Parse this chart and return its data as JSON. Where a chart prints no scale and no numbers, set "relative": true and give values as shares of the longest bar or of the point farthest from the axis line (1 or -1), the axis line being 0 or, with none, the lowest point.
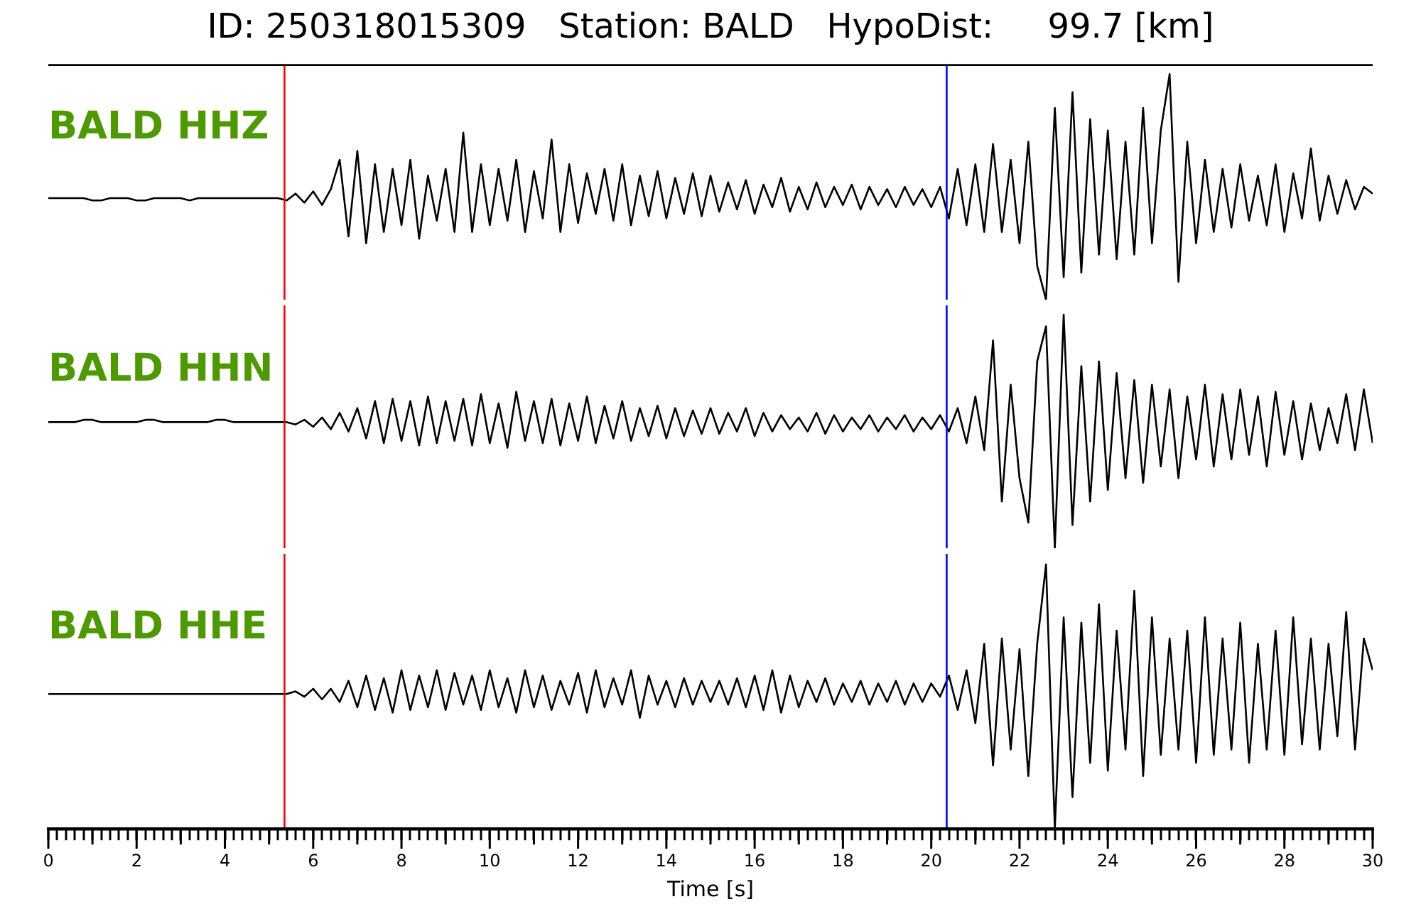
{
  "chart_data": [
    {
      "type": "line",
      "title": "ID: 250318015309   Station: BALD   HypoDist:     99.7 [km]",
      "relative": true,
      "xlim": [
        0,
        30
      ],
      "tick_labels": false,
      "marker": "none",
      "line_style": "solid",
      "grid": false,
      "legend": false,
      "x": [
        0,
        0.2,
        0.4,
        0.6,
        0.8,
        1,
        1.2,
        1.4,
        1.6,
        1.8,
        2,
        2.2,
        2.4,
        2.6,
        2.8,
        3,
        3.2,
        3.4,
        3.6,
        3.8,
        4,
        4.2,
        4.4,
        4.6,
        4.8,
        5,
        5.2,
        5.4,
        5.6,
        5.8,
        6,
        6.2,
        6.4,
        6.6,
        6.8,
        7,
        7.2,
        7.4,
        7.6,
        7.8,
        8,
        8.2,
        8.4,
        8.6,
        8.8,
        9,
        9.2,
        9.4,
        9.6,
        9.8,
        10,
        10.2,
        10.4,
        10.6,
        10.8,
        11,
        11.2,
        11.4,
        11.6,
        11.8,
        12,
        12.2,
        12.4,
        12.6,
        12.8,
        13,
        13.2,
        13.4,
        13.6,
        13.8,
        14,
        14.2,
        14.4,
        14.6,
        14.8,
        15,
        15.2,
        15.4,
        15.6,
        15.8,
        16,
        16.2,
        16.4,
        16.6,
        16.8,
        17,
        17.2,
        17.4,
        17.6,
        17.8,
        18,
        18.2,
        18.4,
        18.6,
        18.8,
        19,
        19.2,
        19.4,
        19.6,
        19.8,
        20,
        20.2,
        20.4,
        20.6,
        20.8,
        21,
        21.2,
        21.4,
        21.6,
        21.8,
        22,
        22.2,
        22.4,
        22.6,
        22.8,
        23,
        23.2,
        23.4,
        23.6,
        23.8,
        24,
        24.2,
        24.4,
        24.6,
        24.8,
        25,
        25.2,
        25.4,
        25.6,
        25.8,
        26,
        26.2,
        26.4,
        26.6,
        26.8,
        27,
        27.2,
        27.4,
        27.6,
        27.8,
        28,
        28.2,
        28.4,
        28.6,
        28.8,
        29,
        29.2,
        29.4,
        29.6,
        29.8,
        30
      ],
      "series": [
        {
          "name": "BALD HHZ",
          "color": "#000000",
          "values": [
            0.45,
            0.45,
            0.45,
            0.45,
            0.45,
            0.44,
            0.44,
            0.45,
            0.45,
            0.45,
            0.44,
            0.44,
            0.45,
            0.45,
            0.45,
            0.45,
            0.44,
            0.45,
            0.45,
            0.45,
            0.45,
            0.45,
            0.45,
            0.45,
            0.45,
            0.45,
            0.45,
            0.44,
            0.47,
            0.43,
            0.48,
            0.42,
            0.49,
            0.62,
            0.28,
            0.66,
            0.25,
            0.6,
            0.3,
            0.58,
            0.33,
            0.62,
            0.27,
            0.55,
            0.35,
            0.58,
            0.3,
            0.74,
            0.3,
            0.6,
            0.33,
            0.58,
            0.35,
            0.62,
            0.3,
            0.57,
            0.36,
            0.71,
            0.3,
            0.6,
            0.34,
            0.56,
            0.38,
            0.58,
            0.35,
            0.6,
            0.33,
            0.55,
            0.37,
            0.57,
            0.36,
            0.54,
            0.38,
            0.56,
            0.37,
            0.55,
            0.39,
            0.52,
            0.4,
            0.53,
            0.38,
            0.51,
            0.41,
            0.54,
            0.39,
            0.5,
            0.4,
            0.52,
            0.41,
            0.5,
            0.42,
            0.51,
            0.4,
            0.5,
            0.42,
            0.49,
            0.41,
            0.5,
            0.42,
            0.49,
            0.41,
            0.5,
            0.36,
            0.58,
            0.33,
            0.6,
            0.3,
            0.69,
            0.3,
            0.62,
            0.25,
            0.7,
            0.15,
            0.0,
            0.85,
            0.1,
            0.92,
            0.12,
            0.8,
            0.2,
            0.75,
            0.18,
            0.7,
            0.2,
            0.85,
            0.25,
            0.75,
            1.0,
            0.08,
            0.7,
            0.25,
            0.62,
            0.3,
            0.58,
            0.32,
            0.6,
            0.35,
            0.55,
            0.33,
            0.6,
            0.3,
            0.56,
            0.36,
            0.67,
            0.35,
            0.55,
            0.38,
            0.53,
            0.4,
            0.5,
            0.47
          ]
        }
      ],
      "ref_lines": [
        {
          "axis": "x",
          "value": 5.35,
          "color": "#ff0000"
        },
        {
          "axis": "x",
          "value": 20.35,
          "color": "#0000ff"
        }
      ]
    },
    {
      "type": "line",
      "relative": true,
      "xlim": [
        0,
        30
      ],
      "tick_labels": false,
      "marker": "none",
      "line_style": "solid",
      "grid": false,
      "legend": false,
      "x": [
        0,
        0.2,
        0.4,
        0.6,
        0.8,
        1,
        1.2,
        1.4,
        1.6,
        1.8,
        2,
        2.2,
        2.4,
        2.6,
        2.8,
        3,
        3.2,
        3.4,
        3.6,
        3.8,
        4,
        4.2,
        4.4,
        4.6,
        4.8,
        5,
        5.2,
        5.4,
        5.6,
        5.8,
        6,
        6.2,
        6.4,
        6.6,
        6.8,
        7,
        7.2,
        7.4,
        7.6,
        7.8,
        8,
        8.2,
        8.4,
        8.6,
        8.8,
        9,
        9.2,
        9.4,
        9.6,
        9.8,
        10,
        10.2,
        10.4,
        10.6,
        10.8,
        11,
        11.2,
        11.4,
        11.6,
        11.8,
        12,
        12.2,
        12.4,
        12.6,
        12.8,
        13,
        13.2,
        13.4,
        13.6,
        13.8,
        14,
        14.2,
        14.4,
        14.6,
        14.8,
        15,
        15.2,
        15.4,
        15.6,
        15.8,
        16,
        16.2,
        16.4,
        16.6,
        16.8,
        17,
        17.2,
        17.4,
        17.6,
        17.8,
        18,
        18.2,
        18.4,
        18.6,
        18.8,
        19,
        19.2,
        19.4,
        19.6,
        19.8,
        20,
        20.2,
        20.4,
        20.6,
        20.8,
        21,
        21.2,
        21.4,
        21.6,
        21.8,
        22,
        22.2,
        22.4,
        22.6,
        22.8,
        23,
        23.2,
        23.4,
        23.6,
        23.8,
        24,
        24.2,
        24.4,
        24.6,
        24.8,
        25,
        25.2,
        25.4,
        25.6,
        25.8,
        26,
        26.2,
        26.4,
        26.6,
        26.8,
        27,
        27.2,
        27.4,
        27.6,
        27.8,
        28,
        28.2,
        28.4,
        28.6,
        28.8,
        29,
        29.2,
        29.4,
        29.6,
        29.8,
        30
      ],
      "series": [
        {
          "name": "BALD HHN",
          "color": "#000000",
          "values": [
            0.54,
            0.54,
            0.54,
            0.54,
            0.55,
            0.55,
            0.54,
            0.54,
            0.54,
            0.54,
            0.54,
            0.55,
            0.55,
            0.54,
            0.54,
            0.54,
            0.54,
            0.54,
            0.54,
            0.55,
            0.55,
            0.54,
            0.54,
            0.54,
            0.54,
            0.54,
            0.54,
            0.54,
            0.53,
            0.55,
            0.52,
            0.56,
            0.51,
            0.58,
            0.5,
            0.6,
            0.47,
            0.63,
            0.45,
            0.64,
            0.46,
            0.63,
            0.44,
            0.65,
            0.45,
            0.63,
            0.46,
            0.64,
            0.44,
            0.66,
            0.45,
            0.62,
            0.43,
            0.67,
            0.46,
            0.63,
            0.45,
            0.64,
            0.44,
            0.62,
            0.46,
            0.65,
            0.45,
            0.61,
            0.47,
            0.63,
            0.46,
            0.6,
            0.48,
            0.61,
            0.47,
            0.6,
            0.48,
            0.59,
            0.49,
            0.6,
            0.49,
            0.58,
            0.5,
            0.6,
            0.48,
            0.58,
            0.5,
            0.57,
            0.51,
            0.56,
            0.5,
            0.58,
            0.49,
            0.57,
            0.5,
            0.56,
            0.51,
            0.57,
            0.5,
            0.56,
            0.51,
            0.57,
            0.5,
            0.56,
            0.51,
            0.57,
            0.5,
            0.6,
            0.45,
            0.65,
            0.42,
            0.89,
            0.2,
            0.7,
            0.3,
            0.11,
            0.8,
            0.95,
            0.0,
            1.0,
            0.1,
            0.78,
            0.2,
            0.8,
            0.25,
            0.75,
            0.3,
            0.72,
            0.28,
            0.7,
            0.35,
            0.68,
            0.3,
            0.65,
            0.38,
            0.7,
            0.35,
            0.66,
            0.38,
            0.68,
            0.4,
            0.65,
            0.35,
            0.67,
            0.4,
            0.63,
            0.38,
            0.62,
            0.42,
            0.6,
            0.45,
            0.66,
            0.42,
            0.68,
            0.45
          ]
        }
      ],
      "ref_lines": [
        {
          "axis": "x",
          "value": 5.35,
          "color": "#ff0000"
        },
        {
          "axis": "x",
          "value": 20.35,
          "color": "#0000ff"
        }
      ]
    },
    {
      "type": "line",
      "relative": true,
      "xlabel": "Time [s]",
      "xlim": [
        0,
        30
      ],
      "tick_labels": "x",
      "marker": "none",
      "line_style": "solid",
      "grid": false,
      "legend": false,
      "xticks": [
        0,
        {
          "value": 0.2,
          "label": null
        },
        {
          "value": 0.4,
          "label": null
        },
        {
          "value": 0.6,
          "label": null
        },
        {
          "value": 0.8,
          "label": null
        },
        {
          "value": 1,
          "label": null
        },
        {
          "value": 1.2,
          "label": null
        },
        {
          "value": 1.4,
          "label": null
        },
        {
          "value": 1.6,
          "label": null
        },
        {
          "value": 1.8,
          "label": null
        },
        2,
        {
          "value": 2.2,
          "label": null
        },
        {
          "value": 2.4,
          "label": null
        },
        {
          "value": 2.6,
          "label": null
        },
        {
          "value": 2.8,
          "label": null
        },
        {
          "value": 3,
          "label": null
        },
        {
          "value": 3.2,
          "label": null
        },
        {
          "value": 3.4,
          "label": null
        },
        {
          "value": 3.6,
          "label": null
        },
        {
          "value": 3.8,
          "label": null
        },
        4,
        {
          "value": 4.2,
          "label": null
        },
        {
          "value": 4.4,
          "label": null
        },
        {
          "value": 4.6,
          "label": null
        },
        {
          "value": 4.8,
          "label": null
        },
        {
          "value": 5,
          "label": null
        },
        {
          "value": 5.2,
          "label": null
        },
        {
          "value": 5.4,
          "label": null
        },
        {
          "value": 5.6,
          "label": null
        },
        {
          "value": 5.8,
          "label": null
        },
        6,
        {
          "value": 6.2,
          "label": null
        },
        {
          "value": 6.4,
          "label": null
        },
        {
          "value": 6.6,
          "label": null
        },
        {
          "value": 6.8,
          "label": null
        },
        {
          "value": 7,
          "label": null
        },
        {
          "value": 7.2,
          "label": null
        },
        {
          "value": 7.4,
          "label": null
        },
        {
          "value": 7.6,
          "label": null
        },
        {
          "value": 7.8,
          "label": null
        },
        8,
        {
          "value": 8.2,
          "label": null
        },
        {
          "value": 8.4,
          "label": null
        },
        {
          "value": 8.6,
          "label": null
        },
        {
          "value": 8.8,
          "label": null
        },
        {
          "value": 9,
          "label": null
        },
        {
          "value": 9.2,
          "label": null
        },
        {
          "value": 9.4,
          "label": null
        },
        {
          "value": 9.6,
          "label": null
        },
        {
          "value": 9.8,
          "label": null
        },
        10,
        {
          "value": 10.2,
          "label": null
        },
        {
          "value": 10.4,
          "label": null
        },
        {
          "value": 10.6,
          "label": null
        },
        {
          "value": 10.8,
          "label": null
        },
        {
          "value": 11,
          "label": null
        },
        {
          "value": 11.2,
          "label": null
        },
        {
          "value": 11.4,
          "label": null
        },
        {
          "value": 11.6,
          "label": null
        },
        {
          "value": 11.8,
          "label": null
        },
        12,
        {
          "value": 12.2,
          "label": null
        },
        {
          "value": 12.4,
          "label": null
        },
        {
          "value": 12.6,
          "label": null
        },
        {
          "value": 12.8,
          "label": null
        },
        {
          "value": 13,
          "label": null
        },
        {
          "value": 13.2,
          "label": null
        },
        {
          "value": 13.4,
          "label": null
        },
        {
          "value": 13.6,
          "label": null
        },
        {
          "value": 13.8,
          "label": null
        },
        14,
        {
          "value": 14.2,
          "label": null
        },
        {
          "value": 14.4,
          "label": null
        },
        {
          "value": 14.6,
          "label": null
        },
        {
          "value": 14.8,
          "label": null
        },
        {
          "value": 15,
          "label": null
        },
        {
          "value": 15.2,
          "label": null
        },
        {
          "value": 15.4,
          "label": null
        },
        {
          "value": 15.6,
          "label": null
        },
        {
          "value": 15.8,
          "label": null
        },
        16,
        {
          "value": 16.2,
          "label": null
        },
        {
          "value": 16.4,
          "label": null
        },
        {
          "value": 16.6,
          "label": null
        },
        {
          "value": 16.8,
          "label": null
        },
        {
          "value": 17,
          "label": null
        },
        {
          "value": 17.2,
          "label": null
        },
        {
          "value": 17.4,
          "label": null
        },
        {
          "value": 17.6,
          "label": null
        },
        {
          "value": 17.8,
          "label": null
        },
        18,
        {
          "value": 18.2,
          "label": null
        },
        {
          "value": 18.4,
          "label": null
        },
        {
          "value": 18.6,
          "label": null
        },
        {
          "value": 18.8,
          "label": null
        },
        {
          "value": 19,
          "label": null
        },
        {
          "value": 19.2,
          "label": null
        },
        {
          "value": 19.4,
          "label": null
        },
        {
          "value": 19.6,
          "label": null
        },
        {
          "value": 19.8,
          "label": null
        },
        20,
        {
          "value": 20.2,
          "label": null
        },
        {
          "value": 20.4,
          "label": null
        },
        {
          "value": 20.6,
          "label": null
        },
        {
          "value": 20.8,
          "label": null
        },
        {
          "value": 21,
          "label": null
        },
        {
          "value": 21.2,
          "label": null
        },
        {
          "value": 21.4,
          "label": null
        },
        {
          "value": 21.6,
          "label": null
        },
        {
          "value": 21.8,
          "label": null
        },
        22,
        {
          "value": 22.2,
          "label": null
        },
        {
          "value": 22.4,
          "label": null
        },
        {
          "value": 22.6,
          "label": null
        },
        {
          "value": 22.8,
          "label": null
        },
        {
          "value": 23,
          "label": null
        },
        {
          "value": 23.2,
          "label": null
        },
        {
          "value": 23.4,
          "label": null
        },
        {
          "value": 23.6,
          "label": null
        },
        {
          "value": 23.8,
          "label": null
        },
        24,
        {
          "value": 24.2,
          "label": null
        },
        {
          "value": 24.4,
          "label": null
        },
        {
          "value": 24.6,
          "label": null
        },
        {
          "value": 24.8,
          "label": null
        },
        {
          "value": 25,
          "label": null
        },
        {
          "value": 25.2,
          "label": null
        },
        {
          "value": 25.4,
          "label": null
        },
        {
          "value": 25.6,
          "label": null
        },
        {
          "value": 25.8,
          "label": null
        },
        26,
        {
          "value": 26.2,
          "label": null
        },
        {
          "value": 26.4,
          "label": null
        },
        {
          "value": 26.6,
          "label": null
        },
        {
          "value": 26.8,
          "label": null
        },
        {
          "value": 27,
          "label": null
        },
        {
          "value": 27.2,
          "label": null
        },
        {
          "value": 27.4,
          "label": null
        },
        {
          "value": 27.6,
          "label": null
        },
        {
          "value": 27.8,
          "label": null
        },
        28,
        {
          "value": 28.2,
          "label": null
        },
        {
          "value": 28.4,
          "label": null
        },
        {
          "value": 28.6,
          "label": null
        },
        {
          "value": 28.8,
          "label": null
        },
        {
          "value": 29,
          "label": null
        },
        {
          "value": 29.2,
          "label": null
        },
        {
          "value": 29.4,
          "label": null
        },
        {
          "value": 29.6,
          "label": null
        },
        {
          "value": 29.8,
          "label": null
        },
        30
      ],
      "x": [
        0,
        0.2,
        0.4,
        0.6,
        0.8,
        1,
        1.2,
        1.4,
        1.6,
        1.8,
        2,
        2.2,
        2.4,
        2.6,
        2.8,
        3,
        3.2,
        3.4,
        3.6,
        3.8,
        4,
        4.2,
        4.4,
        4.6,
        4.8,
        5,
        5.2,
        5.4,
        5.6,
        5.8,
        6,
        6.2,
        6.4,
        6.6,
        6.8,
        7,
        7.2,
        7.4,
        7.6,
        7.8,
        8,
        8.2,
        8.4,
        8.6,
        8.8,
        9,
        9.2,
        9.4,
        9.6,
        9.8,
        10,
        10.2,
        10.4,
        10.6,
        10.8,
        11,
        11.2,
        11.4,
        11.6,
        11.8,
        12,
        12.2,
        12.4,
        12.6,
        12.8,
        13,
        13.2,
        13.4,
        13.6,
        13.8,
        14,
        14.2,
        14.4,
        14.6,
        14.8,
        15,
        15.2,
        15.4,
        15.6,
        15.8,
        16,
        16.2,
        16.4,
        16.6,
        16.8,
        17,
        17.2,
        17.4,
        17.6,
        17.8,
        18,
        18.2,
        18.4,
        18.6,
        18.8,
        19,
        19.2,
        19.4,
        19.6,
        19.8,
        20,
        20.2,
        20.4,
        20.6,
        20.8,
        21,
        21.2,
        21.4,
        21.6,
        21.8,
        22,
        22.2,
        22.4,
        22.6,
        22.8,
        23,
        23.2,
        23.4,
        23.6,
        23.8,
        24,
        24.2,
        24.4,
        24.6,
        24.8,
        25,
        25.2,
        25.4,
        25.6,
        25.8,
        26,
        26.2,
        26.4,
        26.6,
        26.8,
        27,
        27.2,
        27.4,
        27.6,
        27.8,
        28,
        28.2,
        28.4,
        28.6,
        28.8,
        29,
        29.2,
        29.4,
        29.6,
        29.8,
        30
      ],
      "series": [
        {
          "name": "BALD HHE",
          "color": "#000000",
          "values": [
            0.51,
            0.51,
            0.51,
            0.51,
            0.51,
            0.51,
            0.51,
            0.51,
            0.51,
            0.51,
            0.51,
            0.51,
            0.51,
            0.51,
            0.51,
            0.51,
            0.51,
            0.51,
            0.51,
            0.51,
            0.51,
            0.51,
            0.51,
            0.51,
            0.51,
            0.51,
            0.51,
            0.51,
            0.52,
            0.5,
            0.53,
            0.49,
            0.53,
            0.48,
            0.56,
            0.46,
            0.58,
            0.45,
            0.57,
            0.44,
            0.6,
            0.45,
            0.58,
            0.46,
            0.6,
            0.45,
            0.59,
            0.47,
            0.58,
            0.45,
            0.6,
            0.46,
            0.57,
            0.44,
            0.6,
            0.46,
            0.58,
            0.45,
            0.56,
            0.47,
            0.59,
            0.44,
            0.6,
            0.46,
            0.57,
            0.47,
            0.6,
            0.42,
            0.58,
            0.47,
            0.56,
            0.46,
            0.57,
            0.47,
            0.56,
            0.48,
            0.56,
            0.47,
            0.57,
            0.46,
            0.58,
            0.45,
            0.6,
            0.44,
            0.58,
            0.46,
            0.56,
            0.48,
            0.57,
            0.47,
            0.55,
            0.48,
            0.56,
            0.47,
            0.55,
            0.48,
            0.56,
            0.47,
            0.55,
            0.48,
            0.55,
            0.5,
            0.58,
            0.45,
            0.6,
            0.4,
            0.7,
            0.24,
            0.72,
            0.3,
            0.68,
            0.2,
            0.7,
            1.0,
            0.0,
            0.8,
            0.12,
            0.78,
            0.25,
            0.85,
            0.22,
            0.75,
            0.3,
            0.9,
            0.2,
            0.8,
            0.28,
            0.72,
            0.3,
            0.75,
            0.25,
            0.8,
            0.28,
            0.72,
            0.3,
            0.78,
            0.25,
            0.7,
            0.3,
            0.75,
            0.28,
            0.8,
            0.32,
            0.72,
            0.3,
            0.7,
            0.35,
            0.82,
            0.3,
            0.72,
            0.6
          ]
        }
      ],
      "ref_lines": [
        {
          "axis": "x",
          "value": 5.35,
          "color": "#ff0000"
        },
        {
          "axis": "x",
          "value": 20.35,
          "color": "#0000ff"
        }
      ]
    }
  ]
}
